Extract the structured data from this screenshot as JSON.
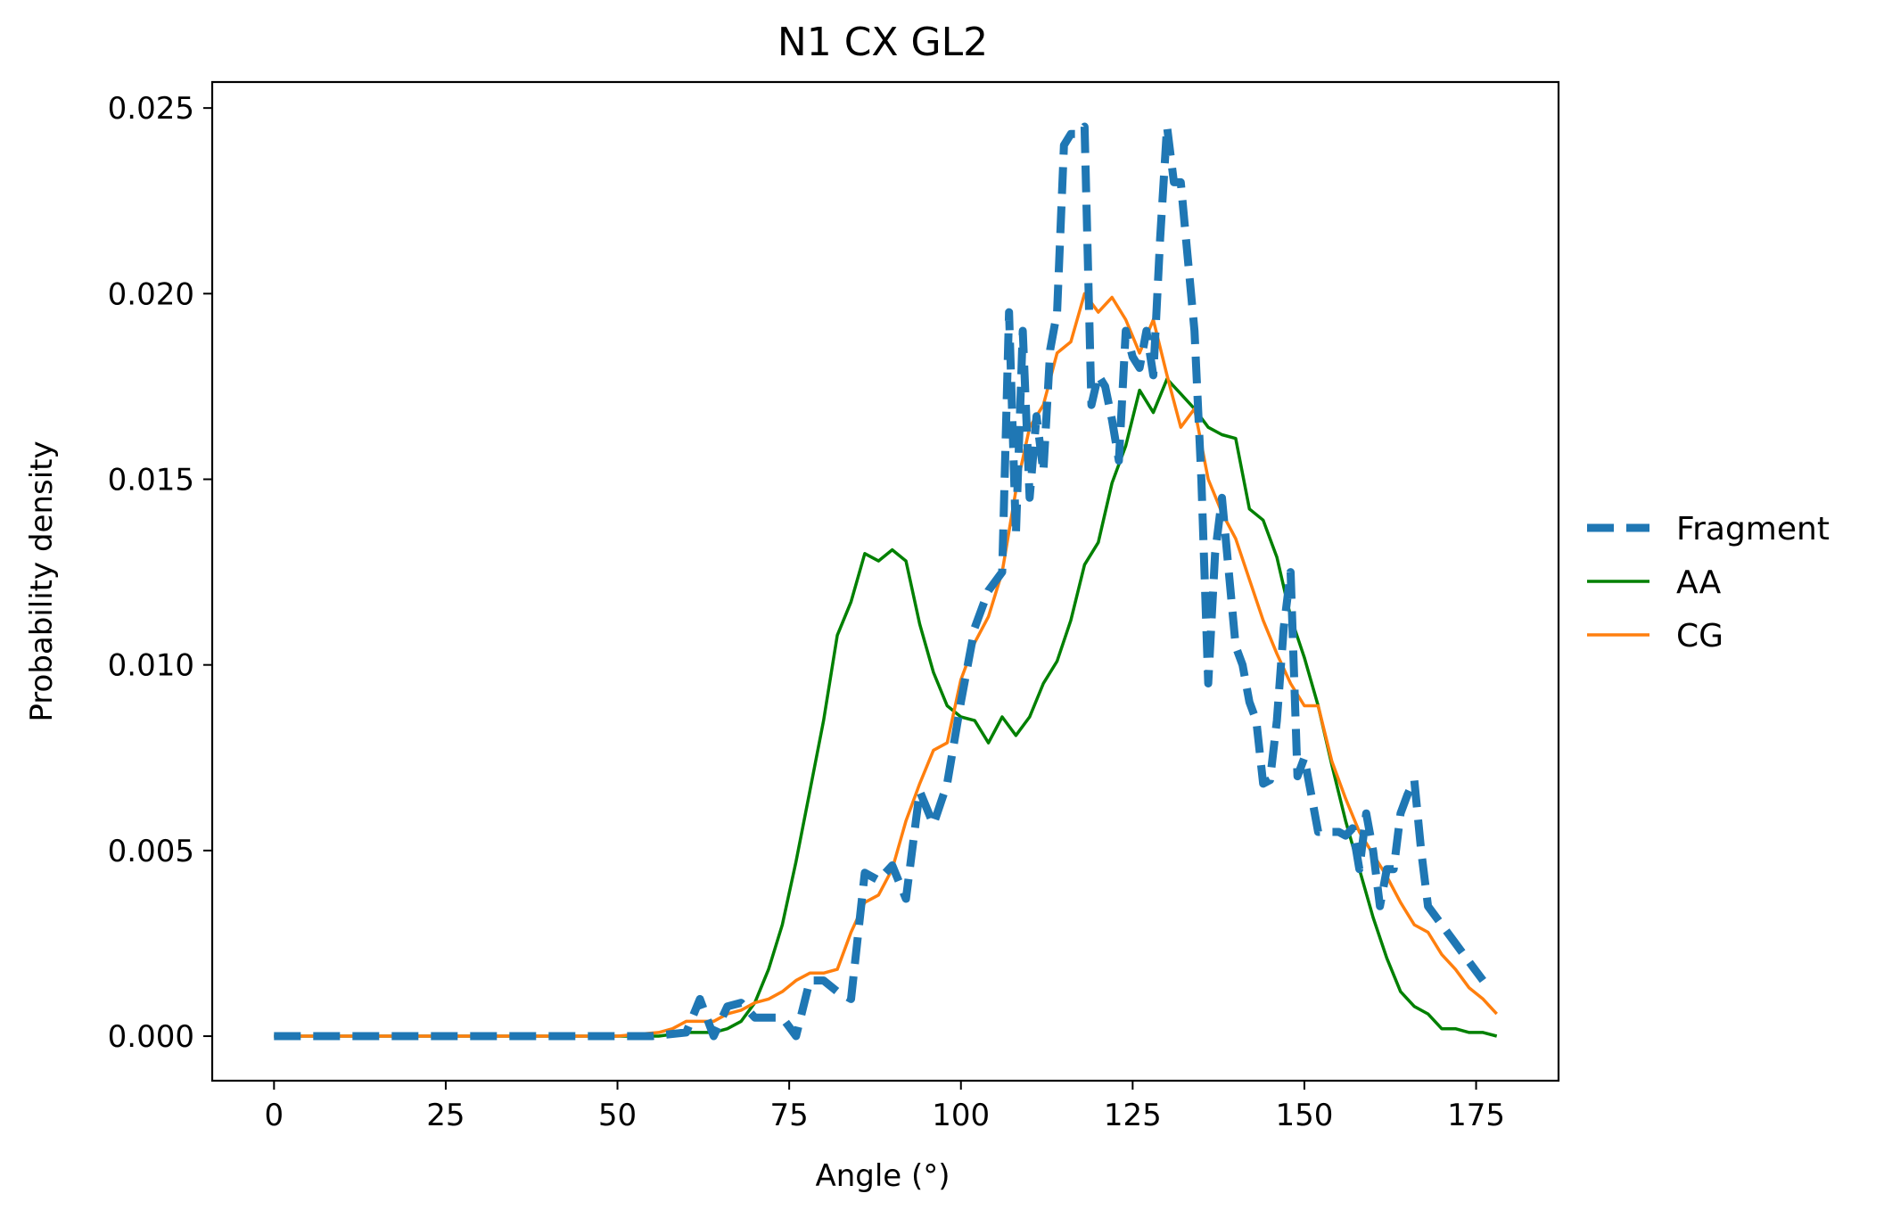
{
  "chart_data": {
    "type": "line",
    "title": "N1 CX GL2",
    "xlabel": "Angle (°)",
    "ylabel": "Probability density",
    "xlim": [
      -9,
      187
    ],
    "ylim": [
      -0.0012,
      0.0257
    ],
    "xticks": [
      0,
      25,
      50,
      75,
      100,
      125,
      150,
      175
    ],
    "xtick_labels": [
      "0",
      "25",
      "50",
      "75",
      "100",
      "125",
      "150",
      "175"
    ],
    "yticks": [
      0.0,
      0.005,
      0.01,
      0.015,
      0.02,
      0.025
    ],
    "ytick_labels": [
      "0.000",
      "0.005",
      "0.010",
      "0.015",
      "0.020",
      "0.025"
    ],
    "grid": false,
    "legend_position": "right, outside plot",
    "series": [
      {
        "name": "Fragment",
        "color": "#1f77b4",
        "style": "dashed",
        "x": [
          0,
          5,
          10,
          15,
          20,
          25,
          30,
          35,
          40,
          45,
          50,
          55,
          60,
          62,
          64,
          66,
          68,
          70,
          72,
          74,
          76,
          78,
          80,
          82,
          84,
          86,
          88,
          90,
          92,
          94,
          96,
          98,
          100,
          102,
          104,
          106,
          107,
          108,
          109,
          110,
          111,
          112,
          113,
          114,
          115,
          116,
          117,
          118,
          119,
          120,
          121,
          122,
          123,
          124,
          125,
          126,
          127,
          128,
          129,
          130,
          131,
          132,
          133,
          134,
          135,
          136,
          137,
          138,
          139,
          140,
          141,
          142,
          143,
          144,
          145,
          146,
          147,
          148,
          149,
          150,
          151,
          152,
          153,
          154,
          155,
          156,
          157,
          158,
          159,
          160,
          161,
          162,
          163,
          164,
          165,
          166,
          167,
          168,
          170,
          172,
          174,
          176
        ],
        "y": [
          0,
          0,
          0,
          0,
          0,
          0,
          0,
          0,
          0,
          0,
          0,
          0,
          0.0001,
          0.001,
          0.0,
          0.0008,
          0.0009,
          0.0005,
          0.0005,
          0.0005,
          0.0,
          0.0015,
          0.0015,
          0.0012,
          0.001,
          0.0044,
          0.0042,
          0.0046,
          0.0037,
          0.0066,
          0.0057,
          0.0068,
          0.009,
          0.011,
          0.012,
          0.0125,
          0.0195,
          0.0135,
          0.019,
          0.0145,
          0.0167,
          0.0152,
          0.0185,
          0.0195,
          0.024,
          0.0243,
          0.0243,
          0.0245,
          0.017,
          0.0178,
          0.0175,
          0.0166,
          0.0155,
          0.019,
          0.0183,
          0.018,
          0.019,
          0.0178,
          0.0215,
          0.0245,
          0.023,
          0.023,
          0.021,
          0.019,
          0.015,
          0.0095,
          0.013,
          0.0145,
          0.0125,
          0.0105,
          0.01,
          0.009,
          0.0085,
          0.0068,
          0.0069,
          0.0085,
          0.011,
          0.0125,
          0.007,
          0.0075,
          0.0065,
          0.0055,
          0.0055,
          0.0055,
          0.0055,
          0.0054,
          0.0056,
          0.0045,
          0.006,
          0.005,
          0.0035,
          0.0045,
          0.0045,
          0.006,
          0.0065,
          0.0069,
          0.005,
          0.0035,
          0.003,
          0.0025,
          0.002,
          0.0015
        ]
      },
      {
        "name": "AA",
        "color": "#008000",
        "style": "solid",
        "x": [
          0,
          10,
          20,
          30,
          40,
          50,
          56,
          60,
          64,
          66,
          68,
          70,
          72,
          74,
          76,
          78,
          80,
          82,
          84,
          86,
          88,
          90,
          92,
          94,
          96,
          98,
          100,
          102,
          104,
          106,
          108,
          110,
          112,
          114,
          116,
          118,
          120,
          122,
          124,
          126,
          128,
          130,
          132,
          134,
          136,
          138,
          140,
          142,
          144,
          146,
          148,
          150,
          152,
          154,
          156,
          158,
          160,
          162,
          164,
          166,
          168,
          170,
          172,
          174,
          176,
          178
        ],
        "y": [
          0,
          0,
          0,
          0,
          0,
          0,
          0,
          0.0001,
          0.0001,
          0.0002,
          0.0004,
          0.0009,
          0.0018,
          0.003,
          0.0047,
          0.0066,
          0.0085,
          0.0108,
          0.0117,
          0.013,
          0.0128,
          0.0131,
          0.0128,
          0.0111,
          0.0098,
          0.0089,
          0.0086,
          0.0085,
          0.0079,
          0.0086,
          0.0081,
          0.0086,
          0.0095,
          0.0101,
          0.0112,
          0.0127,
          0.0133,
          0.0149,
          0.0159,
          0.0174,
          0.0168,
          0.0177,
          0.0173,
          0.0169,
          0.0164,
          0.0162,
          0.0161,
          0.0142,
          0.0139,
          0.0129,
          0.0113,
          0.0102,
          0.0089,
          0.0073,
          0.0058,
          0.0045,
          0.0032,
          0.0021,
          0.0012,
          0.0008,
          0.0006,
          0.0002,
          0.0002,
          0.0001,
          0.0001,
          0.0
        ]
      },
      {
        "name": "CG",
        "color": "#ff7f0e",
        "style": "solid",
        "x": [
          0,
          10,
          20,
          30,
          40,
          50,
          56,
          58,
          60,
          62,
          64,
          66,
          68,
          70,
          72,
          74,
          76,
          78,
          80,
          82,
          84,
          86,
          88,
          90,
          92,
          94,
          96,
          98,
          100,
          102,
          104,
          106,
          108,
          110,
          112,
          114,
          116,
          118,
          120,
          122,
          124,
          126,
          128,
          130,
          132,
          134,
          136,
          138,
          140,
          142,
          144,
          146,
          148,
          150,
          152,
          154,
          156,
          158,
          160,
          162,
          164,
          166,
          168,
          170,
          172,
          174,
          176,
          178
        ],
        "y": [
          0,
          0,
          0,
          0,
          0,
          0,
          0.0001,
          0.0002,
          0.0004,
          0.0004,
          0.0004,
          0.0006,
          0.0007,
          0.0009,
          0.001,
          0.0012,
          0.0015,
          0.0017,
          0.0017,
          0.0018,
          0.0028,
          0.0036,
          0.0038,
          0.0045,
          0.0058,
          0.0068,
          0.0077,
          0.0079,
          0.0096,
          0.0106,
          0.0113,
          0.0125,
          0.0147,
          0.0164,
          0.017,
          0.0184,
          0.0187,
          0.02,
          0.0195,
          0.0199,
          0.0193,
          0.0184,
          0.0193,
          0.0178,
          0.0164,
          0.0169,
          0.015,
          0.0141,
          0.0134,
          0.0123,
          0.0112,
          0.0103,
          0.0095,
          0.0089,
          0.0089,
          0.0074,
          0.0064,
          0.0055,
          0.0049,
          0.0043,
          0.0036,
          0.003,
          0.0028,
          0.0022,
          0.0018,
          0.0013,
          0.001,
          0.0006
        ]
      }
    ]
  }
}
